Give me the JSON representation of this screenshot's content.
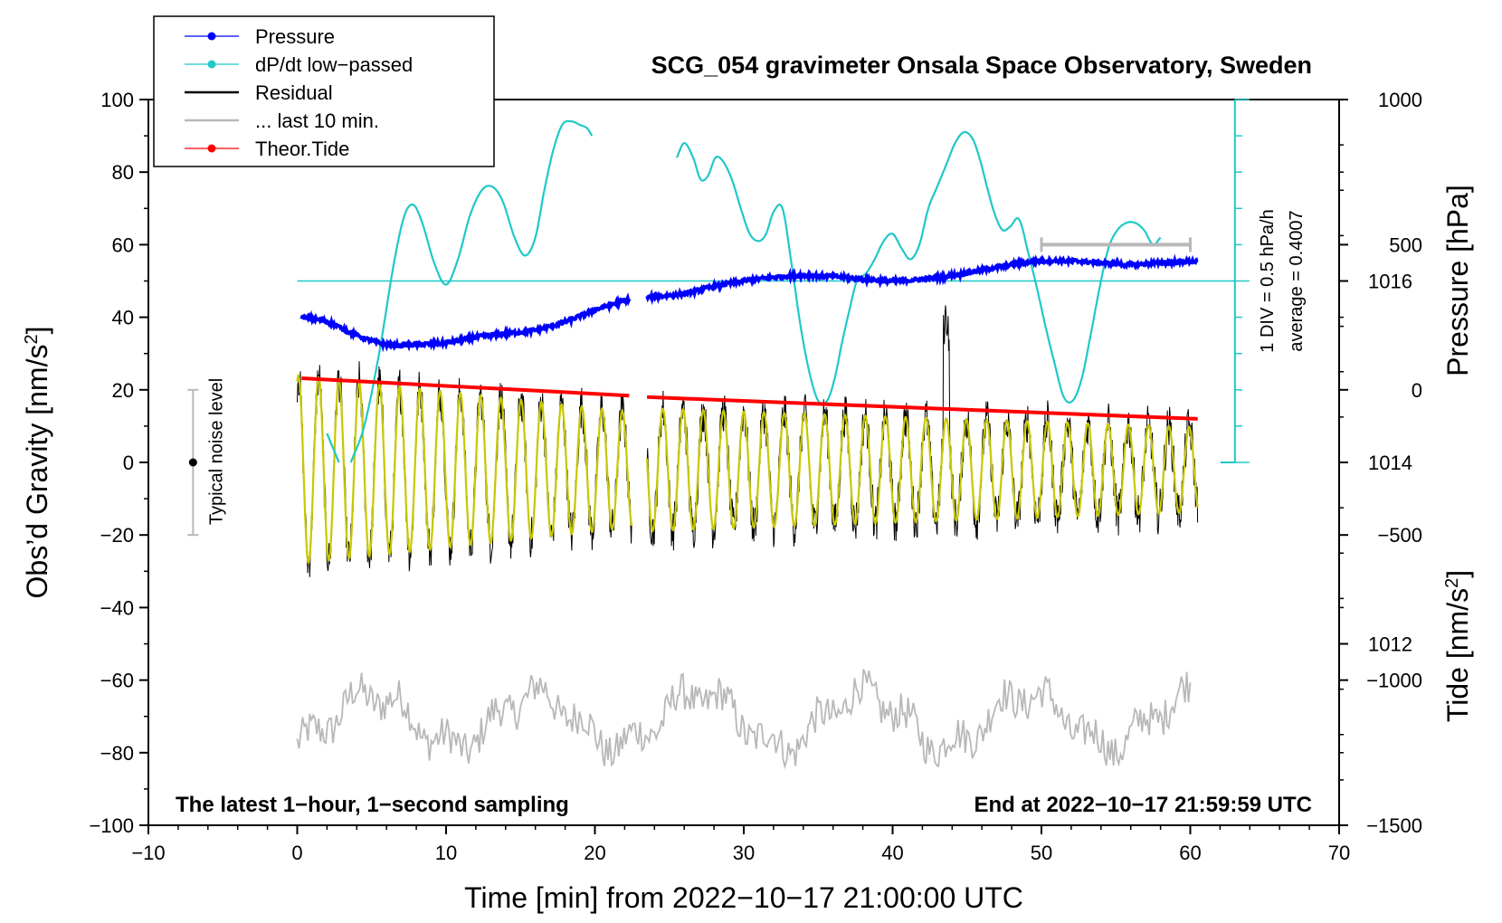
{
  "chart_data": {
    "type": "line",
    "title": "SCG_054 gravimeter Onsala Space Observatory, Sweden",
    "xlabel": "Time [min] from 2022−10−17 21:00:00 UTC",
    "ylabel_prefix": "Obs’d Gravity [nm/s",
    "ylabel_sup": "2",
    "ylabel_suffix": "]",
    "xlim": [
      -10,
      70
    ],
    "ylim": [
      -100,
      100
    ],
    "x_ticks": [
      -10,
      0,
      10,
      20,
      30,
      40,
      50,
      60,
      70
    ],
    "x_tick_labels": [
      "−10",
      "0",
      "10",
      "20",
      "30",
      "40",
      "50",
      "60",
      "70"
    ],
    "y_ticks": [
      -100,
      -80,
      -60,
      -40,
      -20,
      0,
      20,
      40,
      60,
      80,
      100
    ],
    "y_tick_labels": [
      "−100",
      "−80",
      "−60",
      "−40",
      "−20",
      "0",
      "20",
      "40",
      "60",
      "80",
      "100"
    ],
    "pressure_axis": {
      "label": "Pressure [hPa]",
      "range_hpa": [
        1010.0,
        1018.0
      ],
      "ticks": [
        1012,
        1014,
        1016
      ],
      "tick_labels": [
        "1012",
        "1014",
        "1016"
      ]
    },
    "tide_axis": {
      "label_prefix": "Tide [nm/s",
      "label_sup": "2",
      "label_suffix": "]",
      "range": [
        -1500,
        1000
      ],
      "ticks": [
        -1500,
        -1000,
        -500,
        0,
        500,
        1000
      ],
      "tick_labels": [
        "−1500",
        "−1000",
        "−500",
        "0",
        "500",
        "1000"
      ]
    },
    "dpdt_scale": {
      "division_text": "1 DIV = 0.5 hPa/h",
      "average_text": "average = 0.4007",
      "zero_line_y": 50
    },
    "noise_bar": {
      "label": "Typical noise level",
      "x": -7,
      "y": 0,
      "half_range": 20
    },
    "last10_bar": {
      "x_start": 50,
      "x_end": 60,
      "tide_value": 500
    },
    "legend": [
      {
        "label": "Pressure",
        "color": "#0000ff",
        "marker": true
      },
      {
        "label": "dP/dt low−passed",
        "color": "#20c8c8",
        "marker": true
      },
      {
        "label": "Residual",
        "color": "#000000",
        "marker": false
      },
      {
        "label": "... last 10 min.",
        "color": "#b8b8b8",
        "marker": false
      },
      {
        "label": "Theor.Tide",
        "color": "#ff0000",
        "marker": true
      }
    ],
    "annotations": {
      "bottom_left": "The latest 1−hour, 1−second sampling",
      "bottom_right": "End at 2022−10−17 21:59:59 UTC"
    },
    "series": [
      {
        "name": "Pressure",
        "color": "#0000ff",
        "axis": "pressure_hpa",
        "segments": [
          {
            "x": [
              0.3,
              2,
              4,
              6,
              8,
              10,
              12,
              14,
              16,
              18,
              20,
              22.3
            ],
            "y": [
              1015.6,
              1015.55,
              1015.4,
              1015.3,
              1015.3,
              1015.32,
              1015.38,
              1015.42,
              1015.46,
              1015.55,
              1015.68,
              1015.8
            ]
          },
          {
            "x": [
              23.5,
              26,
              28,
              30,
              32,
              34,
              36,
              38,
              40,
              42,
              44,
              46,
              48,
              50,
              52,
              54,
              56,
              58,
              60.5
            ],
            "y": [
              1015.82,
              1015.86,
              1015.94,
              1016.0,
              1016.04,
              1016.06,
              1016.05,
              1016.02,
              1016.0,
              1016.02,
              1016.06,
              1016.12,
              1016.18,
              1016.22,
              1016.22,
              1016.2,
              1016.18,
              1016.2,
              1016.22
            ]
          }
        ]
      },
      {
        "name": "dP/dt low-passed",
        "color": "#20c8c8",
        "axis": "gravity",
        "segments": [
          {
            "x": [
              2.0,
              2.8
            ],
            "y": [
              8,
              0
            ]
          },
          {
            "x": [
              3.6,
              4.5,
              5.5,
              6.5,
              7.2,
              7.8,
              8.4,
              9.2,
              10.0,
              10.8,
              11.6,
              12.4,
              13.1,
              13.8,
              14.6,
              15.3,
              16.0,
              16.6,
              17.2,
              17.8,
              18.4,
              19.0,
              19.5,
              19.8
            ],
            "y": [
              0,
              10,
              30,
              55,
              68,
              71,
              66,
              55,
              49,
              56,
              68,
              75,
              76,
              72,
              62,
              57,
              62,
              75,
              86,
              93,
              94,
              93,
              92,
              90
            ]
          },
          {
            "x": [
              25.5,
              26.0,
              26.6,
              27.1,
              27.6,
              28.1,
              28.6,
              29.2,
              29.8,
              30.4,
              31.0,
              31.5,
              32.0,
              32.6,
              33.2,
              33.8,
              34.4,
              35.0,
              35.6,
              36.1,
              36.6,
              37.1,
              37.6,
              38.2,
              38.8,
              39.4,
              40.0,
              40.6,
              41.2,
              41.8,
              42.4,
              43.0,
              43.6,
              44.2,
              44.8,
              45.4,
              45.9,
              46.4,
              46.9,
              47.4,
              47.9,
              48.5,
              49.1,
              49.7,
              50.3,
              50.9,
              51.5,
              52.1,
              52.7,
              53.3,
              53.9,
              54.5,
              55.1,
              55.7,
              56.3,
              56.9,
              57.5,
              58.0
            ],
            "y": [
              84,
              88,
              84,
              78,
              79,
              84,
              83,
              78,
              70,
              63,
              61,
              63,
              69,
              70,
              55,
              38,
              25,
              17,
              17,
              23,
              33,
              42,
              50,
              52,
              56,
              61,
              63,
              59,
              56,
              60,
              70,
              76,
              82,
              88,
              91,
              89,
              83,
              75,
              68,
              64,
              65,
              67,
              58,
              48,
              37,
              27,
              18,
              17,
              23,
              35,
              48,
              59,
              64,
              66,
              66,
              64,
              60,
              62
            ]
          }
        ]
      },
      {
        "name": "Residual",
        "color": "#000000",
        "axis": "gravity",
        "description": "noisy 1-s residual, oscillation amplitude ~±25 nm/s² decaying to ~±12 nm/s², period ~1.35 min, gap 22.5–23.5 min",
        "x_range": [
          0,
          60.5
        ],
        "gap": [
          22.5,
          23.5
        ]
      },
      {
        "name": "Residual (smoothed)",
        "color": "#c8c800",
        "axis": "gravity",
        "x_range": [
          0,
          60.5
        ],
        "gap": [
          22.5,
          23.5
        ]
      },
      {
        "name": "... last 10 min.",
        "color": "#b8b8b8",
        "axis": "gravity",
        "x_range": [
          0,
          60
        ],
        "y_range": [
          -86,
          -57
        ]
      },
      {
        "name": "Theor.Tide",
        "color": "#ff0000",
        "axis": "tide",
        "segments": [
          {
            "x": [
              0.3,
              22.3
            ],
            "y": [
              40,
              -20
            ]
          },
          {
            "x": [
              23.5,
              60.5
            ],
            "y": [
              -25,
              -100
            ]
          }
        ]
      }
    ]
  }
}
